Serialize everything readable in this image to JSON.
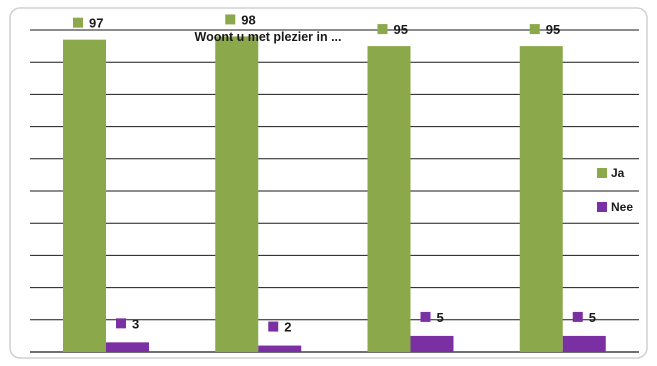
{
  "chart_data": {
    "type": "bar",
    "title": "Woont u met plezier in ...",
    "categories": [
      "",
      "",
      "",
      ""
    ],
    "series": [
      {
        "name": "Ja",
        "values": [
          97,
          98,
          95,
          95
        ],
        "color": "#8BA84A"
      },
      {
        "name": "Nee",
        "values": [
          3,
          2,
          5,
          5
        ],
        "color": "#7A2FA2"
      }
    ],
    "ylim": [
      0,
      100
    ],
    "grid": true,
    "legend_position": "right",
    "data_labels": true
  }
}
